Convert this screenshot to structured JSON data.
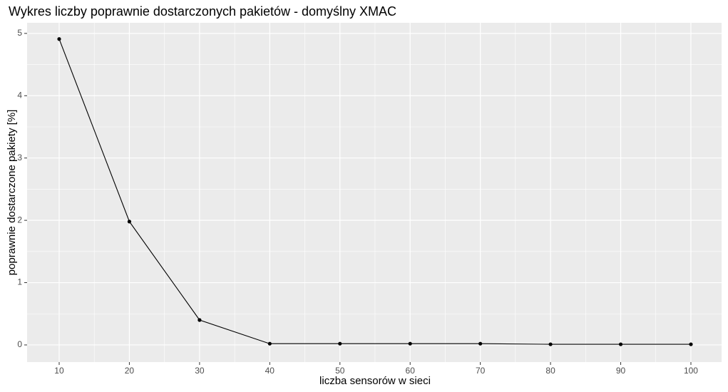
{
  "chart_data": {
    "type": "line",
    "title": "Wykres liczby poprawnie dostarczonych pakietów - domyślny XMAC",
    "x_label": "liczba sensorów w sieci",
    "y_label": "poprawnie dostarczone pakiety [%]",
    "x": [
      10,
      20,
      30,
      40,
      50,
      60,
      70,
      80,
      90,
      100
    ],
    "series": [
      {
        "color": "#000000",
        "values": [
          4.91,
          1.98,
          0.4,
          0.02,
          0.02,
          0.02,
          0.02,
          0.01,
          0.01,
          0.01
        ]
      }
    ],
    "xlim": [
      5.43,
      104.37
    ],
    "xticks": [
      10,
      20,
      30,
      40,
      50,
      60,
      70,
      80,
      90,
      100
    ],
    "ylim": [
      -0.275,
      5.17
    ],
    "yticks": [
      0,
      1,
      2,
      3,
      4,
      5
    ],
    "grid": true,
    "background": "#ebebeb"
  }
}
